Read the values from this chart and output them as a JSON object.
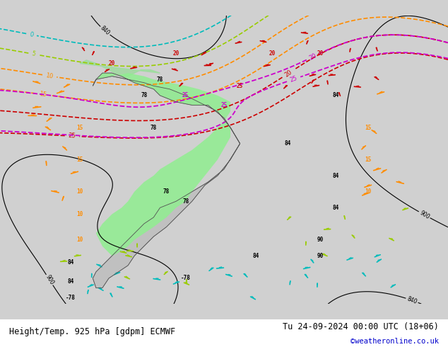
{
  "title_left": "Height/Temp. 925 hPa [gdpm] ECMWF",
  "title_right": "Tu 24-09-2024 00:00 UTC (18+06)",
  "credit": "©weatheronline.co.uk",
  "bg_color": "#d3d3d3",
  "land_color": "#c8c8c8",
  "green_fill": "#90ee90",
  "footer_bg": "#ffffff",
  "text_color_black": "#000000",
  "text_color_red": "#cc0000",
  "text_color_orange": "#ff8c00",
  "text_color_green": "#7ccc00",
  "text_color_cyan": "#00cccc",
  "text_color_magenta": "#cc00cc",
  "figsize": [
    6.34,
    4.9
  ],
  "dpi": 100
}
